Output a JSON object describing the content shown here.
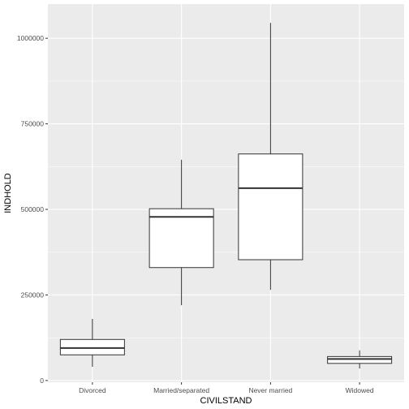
{
  "chart_data": {
    "type": "box",
    "title": "",
    "xlabel": "CIVILSTAND",
    "ylabel": "INDHOLD",
    "ylim": [
      -5000,
      1100000
    ],
    "y_ticks": [
      0,
      250000,
      500000,
      750000,
      1000000
    ],
    "y_tick_labels": [
      "0",
      "250000",
      "500000",
      "750000",
      "1000000"
    ],
    "grid": true,
    "legend": "none",
    "categories": [
      "Divorced",
      "Married/separated",
      "Never married",
      "Widowed"
    ],
    "boxes": [
      {
        "category": "Divorced",
        "whisker_low": 40000,
        "q1": 75000,
        "median": 95000,
        "q3": 120000,
        "whisker_high": 180000
      },
      {
        "category": "Married/separated",
        "whisker_low": 220000,
        "q1": 330000,
        "median": 478000,
        "q3": 502000,
        "whisker_high": 645000
      },
      {
        "category": "Never married",
        "whisker_low": 265000,
        "q1": 353000,
        "median": 562000,
        "q3": 662000,
        "whisker_high": 1045000
      },
      {
        "category": "Widowed",
        "whisker_low": 35000,
        "q1": 50000,
        "median": 63000,
        "q3": 70000,
        "whisker_high": 88000
      }
    ],
    "colors": {
      "panel_background": "#ebebeb",
      "grid_major": "#ffffff",
      "box_fill": "#ffffff",
      "box_stroke": "#333333",
      "tick_text": "#4d4d4d"
    }
  }
}
